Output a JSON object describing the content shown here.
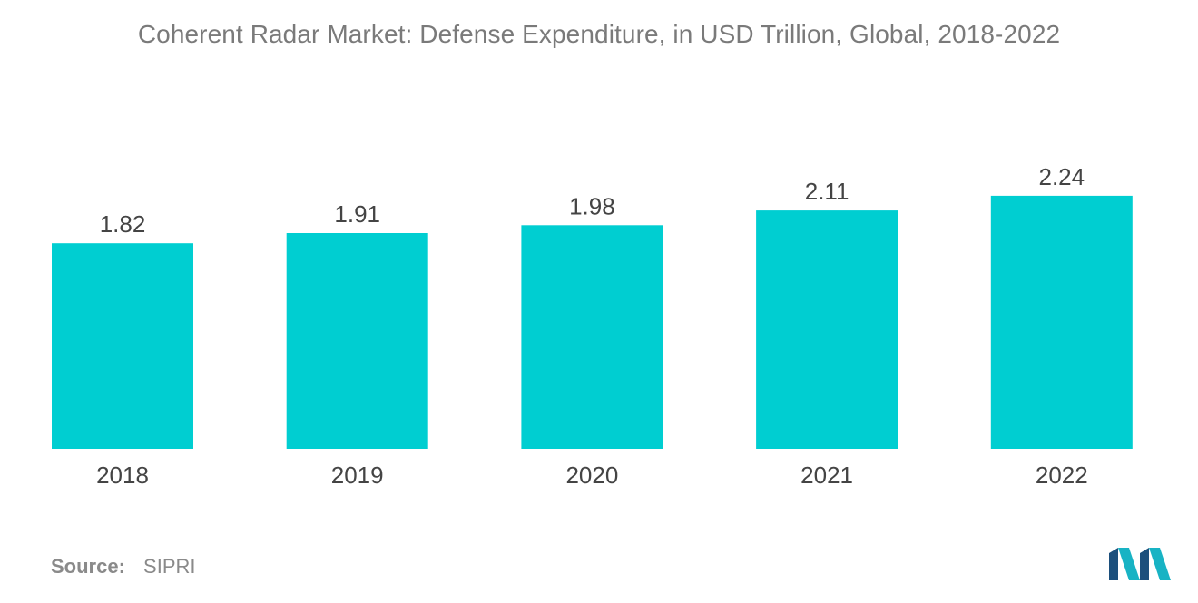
{
  "chart_data": {
    "type": "bar",
    "title": "Coherent Radar Market: Defense Expenditure, in USD Trillion, Global, 2018-2022",
    "categories": [
      "2018",
      "2019",
      "2020",
      "2021",
      "2022"
    ],
    "values": [
      1.82,
      1.91,
      1.98,
      2.11,
      2.24
    ],
    "value_labels": [
      "1.82",
      "1.91",
      "1.98",
      "2.11",
      "2.24"
    ],
    "xlabel": "",
    "ylabel": "",
    "grid": false,
    "legend": "none",
    "bar_color": "#00ced1"
  },
  "source": {
    "label": "Source:",
    "value": "SIPRI"
  },
  "logo": {
    "icon": "mordor-intelligence-logo-icon",
    "colors": [
      "#1c4f7c",
      "#18b3c4"
    ]
  }
}
